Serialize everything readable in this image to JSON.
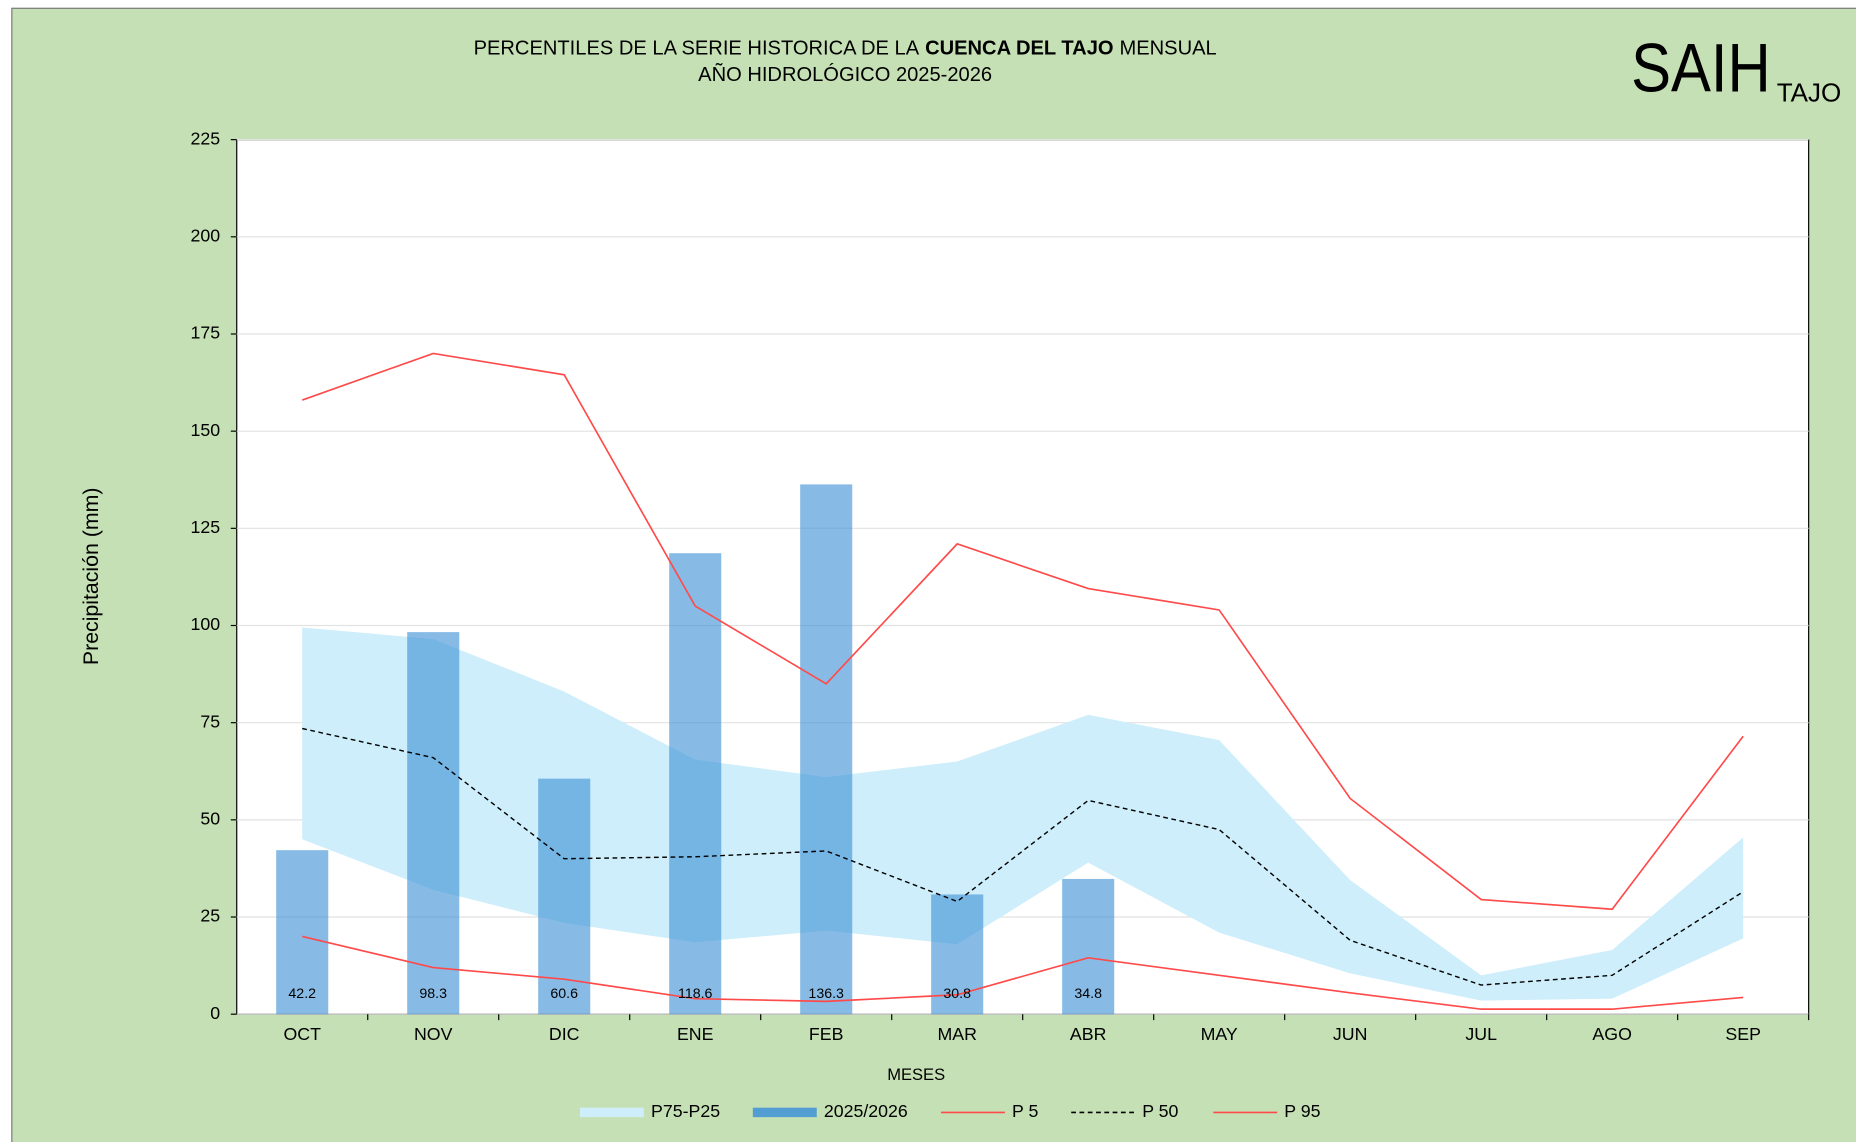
{
  "chart_data": {
    "type": "bar",
    "title": [
      "PERCENTILES DE LA SERIE HISTORICA DE LA",
      "CUENCA DEL TAJO",
      "MENSUAL"
    ],
    "subtitle": "AÑO HIDROLÓGICO 2025-2026",
    "logo": [
      "SAIH",
      "TAJO"
    ],
    "xlabel": "MESES",
    "ylabel": "Precipitación (mm)",
    "categories": [
      "OCT",
      "NOV",
      "DIC",
      "ENE",
      "FEB",
      "MAR",
      "ABR",
      "MAY",
      "JUN",
      "JUL",
      "AGO",
      "SEP"
    ],
    "ylim": [
      0,
      225
    ],
    "yticks": [
      0,
      25,
      50,
      75,
      100,
      125,
      150,
      175,
      200,
      225
    ],
    "grid": true,
    "legend": "bottom",
    "series": [
      {
        "name": "P75-P25",
        "kind": "band",
        "color": "#cdeefa",
        "upper": [
          99.5,
          96.5,
          83,
          65.5,
          61,
          65,
          77,
          70.5,
          34.5,
          10,
          16.5,
          45.5
        ],
        "lower": [
          45,
          32,
          23.5,
          18.5,
          21.5,
          18,
          39,
          21,
          10.5,
          3.5,
          4,
          19.5
        ]
      },
      {
        "name": "2025/2026",
        "kind": "bar",
        "color": "#3d91d6",
        "values": [
          42.2,
          98.3,
          60.6,
          118.6,
          136.3,
          30.8,
          34.8,
          null,
          null,
          null,
          null,
          null
        ]
      },
      {
        "name": "P 5",
        "kind": "line",
        "color": "#ff4a4a",
        "values": [
          20,
          12,
          9,
          4,
          3.3,
          5,
          14.5,
          10,
          5.5,
          1.3,
          1.3,
          4.3
        ]
      },
      {
        "name": "P 50",
        "kind": "line",
        "color": "#000000",
        "dashed": true,
        "values": [
          73.5,
          66,
          40,
          40.5,
          42,
          29,
          55,
          47.5,
          19,
          7.5,
          10,
          31.5
        ]
      },
      {
        "name": "P 95",
        "kind": "line",
        "color": "#ff4a4a",
        "values": [
          158,
          170,
          164.5,
          105,
          85,
          121,
          109.5,
          104,
          55.5,
          29.5,
          27,
          71.5
        ]
      }
    ]
  }
}
